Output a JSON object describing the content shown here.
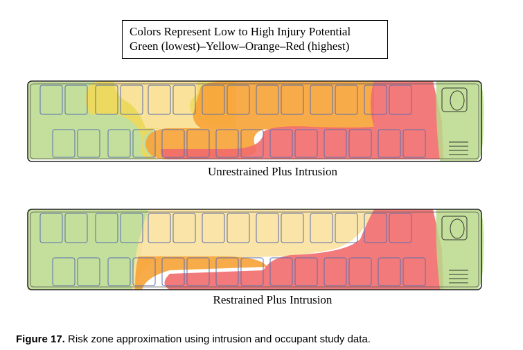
{
  "legend": {
    "line1": "Colors Represent Low to High Injury Potential",
    "line2": "Green (lowest)–Yellow–Orange–Red (highest)"
  },
  "colors": {
    "green": "#b9d98a",
    "yellow": "#f7dc6e",
    "light_yellow": "#fbe2a0",
    "orange": "#f7a43a",
    "red": "#f26b6b",
    "seat_outline": "#5a6fb0",
    "bus_outline": "#222222"
  },
  "scenarios": [
    {
      "label": "Unrestrained Plus Intrusion"
    },
    {
      "label": "Restrained Plus Intrusion"
    }
  ],
  "caption": {
    "figure": "Figure 17.",
    "text": " Risk zone approximation using intrusion and occupant study data."
  }
}
